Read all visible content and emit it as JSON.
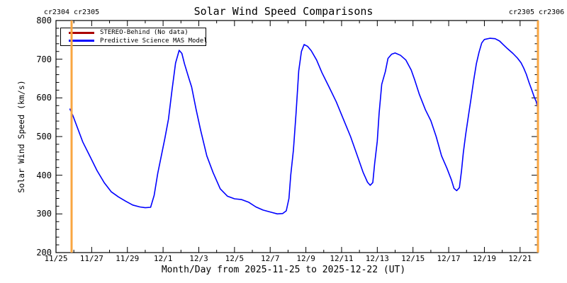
{
  "title": "Solar Wind Speed Comparisons",
  "header": {
    "left_rotations": "cr2304 cr2305",
    "right_rotations": "cr2305 cr2306"
  },
  "legend": {
    "items": [
      {
        "label": "STEREO-Behind (No data)",
        "color": "#aa0000"
      },
      {
        "label": "Predictive Science MAS Model",
        "color": "#0000ff"
      }
    ]
  },
  "colors": {
    "boundary_line": "#f9a642",
    "axis": "#000000",
    "model_curve": "#0000ff",
    "stereo_line": "#aa0000"
  },
  "chart_data": {
    "type": "line",
    "title": "Solar Wind Speed Comparisons",
    "xlabel": "Month/Day from 2025-11-25 to 2025-12-22 (UT)",
    "ylabel": "Solar Wind Speed (km/s)",
    "x_start_date": "2025-11-25",
    "x_end_date": "2025-12-22",
    "xlim_days": [
      0,
      27
    ],
    "ylim": [
      200,
      800
    ],
    "grid": false,
    "legend_position": "top-left",
    "x_minor_step_days": 1,
    "y_minor_step": 20,
    "y_ticks": [
      200,
      300,
      400,
      500,
      600,
      700,
      800
    ],
    "x_ticks": [
      {
        "day": 0,
        "label": "11/25"
      },
      {
        "day": 2,
        "label": "11/27"
      },
      {
        "day": 4,
        "label": "11/29"
      },
      {
        "day": 6,
        "label": "12/1"
      },
      {
        "day": 8,
        "label": "12/3"
      },
      {
        "day": 10,
        "label": "12/5"
      },
      {
        "day": 12,
        "label": "12/7"
      },
      {
        "day": 14,
        "label": "12/9"
      },
      {
        "day": 16,
        "label": "12/11"
      },
      {
        "day": 18,
        "label": "12/13"
      },
      {
        "day": 20,
        "label": "12/15"
      },
      {
        "day": 22,
        "label": "12/17"
      },
      {
        "day": 24,
        "label": "12/19"
      },
      {
        "day": 26,
        "label": "12/21"
      }
    ],
    "boundary_lines_days": [
      0.87,
      27.0
    ],
    "boundary_labels": [
      "cr2304/cr2305",
      "cr2305/cr2306"
    ],
    "series": [
      {
        "name": "STEREO-Behind (No data)",
        "color": "#aa0000",
        "no_data": true,
        "points": []
      },
      {
        "name": "Predictive Science MAS Model",
        "color": "#0000ff",
        "points": [
          [
            0.77,
            572
          ],
          [
            0.95,
            554
          ],
          [
            1.2,
            523
          ],
          [
            1.5,
            486
          ],
          [
            1.9,
            449
          ],
          [
            2.3,
            412
          ],
          [
            2.7,
            381
          ],
          [
            3.1,
            357
          ],
          [
            3.5,
            344
          ],
          [
            3.9,
            333
          ],
          [
            4.3,
            323
          ],
          [
            4.7,
            318
          ],
          [
            5.0,
            316
          ],
          [
            5.3,
            317
          ],
          [
            5.5,
            348
          ],
          [
            5.7,
            405
          ],
          [
            5.9,
            450
          ],
          [
            6.1,
            495
          ],
          [
            6.3,
            545
          ],
          [
            6.5,
            620
          ],
          [
            6.7,
            690
          ],
          [
            6.9,
            723
          ],
          [
            7.05,
            715
          ],
          [
            7.2,
            688
          ],
          [
            7.45,
            650
          ],
          [
            7.6,
            628
          ],
          [
            7.85,
            570
          ],
          [
            8.1,
            517
          ],
          [
            8.45,
            450
          ],
          [
            8.8,
            407
          ],
          [
            9.2,
            365
          ],
          [
            9.6,
            346
          ],
          [
            10.0,
            339
          ],
          [
            10.4,
            337
          ],
          [
            10.8,
            330
          ],
          [
            11.2,
            318
          ],
          [
            11.6,
            310
          ],
          [
            12.0,
            305
          ],
          [
            12.4,
            300
          ],
          [
            12.7,
            301
          ],
          [
            12.9,
            308
          ],
          [
            13.05,
            340
          ],
          [
            13.15,
            400
          ],
          [
            13.3,
            465
          ],
          [
            13.45,
            560
          ],
          [
            13.6,
            670
          ],
          [
            13.75,
            720
          ],
          [
            13.9,
            738
          ],
          [
            14.1,
            733
          ],
          [
            14.3,
            722
          ],
          [
            14.6,
            698
          ],
          [
            14.9,
            665
          ],
          [
            15.3,
            628
          ],
          [
            15.7,
            590
          ],
          [
            16.1,
            545
          ],
          [
            16.5,
            500
          ],
          [
            16.9,
            448
          ],
          [
            17.2,
            408
          ],
          [
            17.45,
            382
          ],
          [
            17.6,
            374
          ],
          [
            17.75,
            381
          ],
          [
            17.85,
            430
          ],
          [
            18.0,
            488
          ],
          [
            18.1,
            560
          ],
          [
            18.25,
            635
          ],
          [
            18.45,
            668
          ],
          [
            18.6,
            702
          ],
          [
            18.8,
            713
          ],
          [
            19.0,
            716
          ],
          [
            19.3,
            710
          ],
          [
            19.6,
            698
          ],
          [
            19.9,
            672
          ],
          [
            20.1,
            646
          ],
          [
            20.35,
            610
          ],
          [
            20.7,
            569
          ],
          [
            21.0,
            541
          ],
          [
            21.3,
            500
          ],
          [
            21.6,
            450
          ],
          [
            21.9,
            418
          ],
          [
            22.15,
            388
          ],
          [
            22.3,
            366
          ],
          [
            22.45,
            360
          ],
          [
            22.6,
            368
          ],
          [
            22.72,
            412
          ],
          [
            22.82,
            458
          ],
          [
            22.95,
            505
          ],
          [
            23.1,
            552
          ],
          [
            23.25,
            598
          ],
          [
            23.4,
            645
          ],
          [
            23.55,
            688
          ],
          [
            23.7,
            718
          ],
          [
            23.85,
            742
          ],
          [
            24.0,
            751
          ],
          [
            24.3,
            754
          ],
          [
            24.6,
            753
          ],
          [
            24.85,
            747
          ],
          [
            25.05,
            738
          ],
          [
            25.3,
            727
          ],
          [
            25.6,
            715
          ],
          [
            25.85,
            703
          ],
          [
            26.05,
            691
          ],
          [
            26.2,
            677
          ],
          [
            26.35,
            661
          ],
          [
            26.5,
            640
          ],
          [
            26.65,
            621
          ],
          [
            26.8,
            601
          ],
          [
            26.9,
            591
          ],
          [
            27.0,
            571
          ]
        ]
      }
    ]
  }
}
